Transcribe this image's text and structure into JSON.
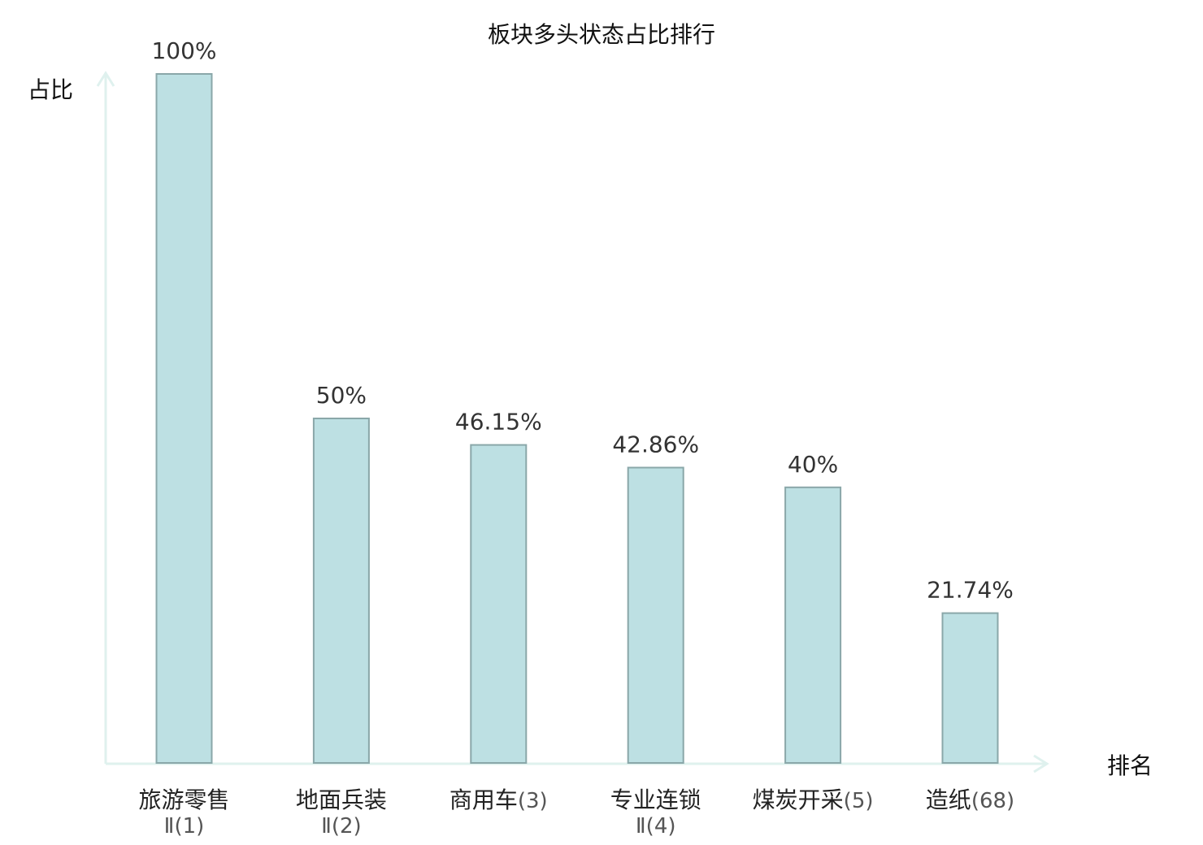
{
  "chart_data": {
    "type": "bar",
    "title": "板块多头状态占比排行",
    "ylabel": "占比",
    "xlabel": "排名",
    "ylim": [
      0,
      100
    ],
    "grid": false,
    "categories": [
      {
        "name": "旅游零售",
        "rank": "Ⅱ(1)",
        "highlight": false
      },
      {
        "name": "地面兵装",
        "rank": "Ⅱ(2)",
        "highlight": false
      },
      {
        "name": "商用车",
        "rank": "(3)",
        "highlight": false
      },
      {
        "name": "专业连锁",
        "rank": "Ⅱ(4)",
        "highlight": false
      },
      {
        "name": "煤炭开采",
        "rank": "(5)",
        "highlight": false
      },
      {
        "name": "造纸",
        "rank": "(68)",
        "highlight": true
      }
    ],
    "values": [
      100,
      50,
      46.15,
      42.86,
      40,
      21.74
    ],
    "value_labels": [
      "100%",
      "50%",
      "46.15%",
      "42.86%",
      "40%",
      "21.74%"
    ],
    "colors": {
      "bar_fill": "#bde0e3",
      "bar_stroke": "#8aa7a9",
      "axis": "#dff1ee",
      "highlight_text": "#cc0000"
    }
  }
}
